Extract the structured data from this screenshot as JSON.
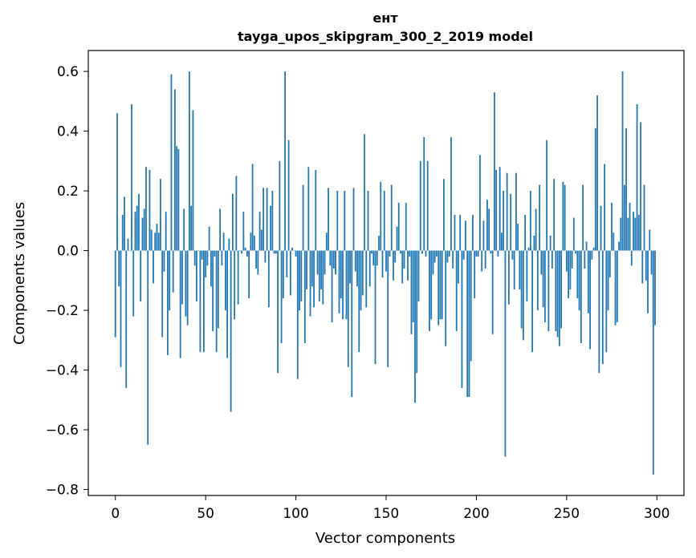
{
  "chart_data": {
    "type": "bar",
    "title_line1": "ент",
    "title_line2": "tayga_upos_skipgram_300_2_2019 model",
    "xlabel": "Vector components",
    "ylabel": "Components values",
    "xlim": [
      -15,
      315
    ],
    "ylim": [
      -0.82,
      0.67
    ],
    "xticks": [
      0,
      50,
      100,
      150,
      200,
      250,
      300
    ],
    "xtick_labels": [
      "0",
      "50",
      "100",
      "150",
      "200",
      "250",
      "300"
    ],
    "yticks": [
      -0.8,
      -0.6,
      -0.4,
      -0.2,
      0.0,
      0.2,
      0.4,
      0.6
    ],
    "ytick_labels": [
      "−0.8",
      "−0.6",
      "−0.4",
      "−0.2",
      "0.0",
      "0.2",
      "0.4",
      "0.6"
    ],
    "bar_color": "#1f77b4",
    "values": [
      -0.29,
      0.46,
      -0.12,
      -0.39,
      0.12,
      0.18,
      -0.46,
      0.04,
      0.0,
      0.49,
      -0.22,
      0.13,
      0.15,
      0.19,
      -0.17,
      0.11,
      0.14,
      0.28,
      -0.65,
      0.27,
      0.07,
      -0.11,
      0.06,
      0.09,
      0.06,
      0.24,
      -0.29,
      -0.07,
      0.13,
      -0.35,
      -0.2,
      0.59,
      -0.14,
      0.54,
      0.35,
      0.34,
      -0.36,
      -0.18,
      0.14,
      -0.22,
      -0.25,
      0.6,
      0.15,
      0.47,
      -0.05,
      -0.17,
      0.0,
      -0.34,
      -0.03,
      -0.34,
      -0.09,
      -0.05,
      0.08,
      -0.12,
      -0.27,
      -0.02,
      -0.34,
      -0.26,
      0.14,
      -0.05,
      0.06,
      -0.2,
      -0.36,
      0.04,
      -0.54,
      0.19,
      -0.23,
      0.25,
      -0.18,
      0.0,
      -0.01,
      0.13,
      0.01,
      -0.02,
      -0.16,
      0.06,
      0.29,
      0.05,
      -0.06,
      -0.08,
      0.13,
      0.07,
      0.21,
      -0.04,
      0.21,
      -0.19,
      0.15,
      0.2,
      -0.01,
      -0.01,
      -0.41,
      0.3,
      -0.31,
      -0.16,
      0.6,
      -0.09,
      0.37,
      -0.15,
      0.01,
      0.0,
      -0.02,
      -0.43,
      -0.2,
      -0.17,
      0.22,
      -0.31,
      -0.13,
      0.28,
      -0.22,
      -0.12,
      -0.19,
      0.27,
      -0.08,
      -0.17,
      -0.13,
      -0.18,
      -0.08,
      0.06,
      0.21,
      -0.05,
      -0.24,
      -0.06,
      -0.08,
      0.2,
      -0.21,
      -0.16,
      -0.23,
      0.2,
      -0.23,
      -0.39,
      -0.11,
      -0.49,
      0.21,
      -0.07,
      -0.12,
      -0.34,
      -0.2,
      -0.15,
      0.39,
      -0.19,
      0.2,
      -0.12,
      -0.01,
      -0.05,
      -0.38,
      -0.05,
      0.05,
      0.23,
      -0.09,
      0.2,
      -0.07,
      -0.39,
      -0.02,
      0.22,
      -0.1,
      -0.04,
      0.08,
      0.16,
      -0.01,
      -0.11,
      -0.06,
      0.16,
      -0.1,
      -0.02,
      -0.28,
      -0.24,
      -0.51,
      -0.41,
      -0.17,
      0.3,
      -0.01,
      0.38,
      -0.02,
      0.3,
      -0.27,
      -0.23,
      -0.08,
      -0.04,
      -0.02,
      -0.25,
      -0.23,
      -0.23,
      0.24,
      -0.32,
      -0.04,
      -0.02,
      0.38,
      -0.06,
      0.12,
      -0.27,
      -0.11,
      0.12,
      -0.46,
      -0.03,
      0.1,
      -0.49,
      -0.49,
      -0.37,
      0.12,
      -0.16,
      -0.02,
      -0.02,
      0.32,
      -0.07,
      0.1,
      -0.06,
      0.17,
      0.14,
      -0.01,
      -0.28,
      0.53,
      0.27,
      -0.02,
      0.28,
      0.06,
      0.2,
      -0.69,
      0.26,
      -0.18,
      0.19,
      -0.03,
      -0.13,
      0.26,
      0.09,
      -0.13,
      -0.26,
      -0.3,
      0.12,
      -0.17,
      0.01,
      0.2,
      -0.34,
      0.05,
      0.14,
      -0.2,
      0.22,
      -0.08,
      -0.19,
      -0.24,
      0.37,
      -0.27,
      0.05,
      -0.06,
      0.24,
      -0.27,
      -0.29,
      -0.32,
      -0.26,
      0.23,
      0.22,
      -0.07,
      -0.16,
      -0.13,
      -0.06,
      0.11,
      -0.01,
      -0.16,
      -0.2,
      -0.31,
      0.22,
      -0.06,
      0.03,
      -0.21,
      -0.33,
      -0.03,
      0.01,
      0.41,
      0.52,
      -0.41,
      0.15,
      -0.38,
      0.29,
      -0.34,
      -0.2,
      -0.09,
      0.16,
      0.06,
      -0.25,
      -0.24,
      0.03,
      0.11,
      0.6,
      0.22,
      0.41,
      0.11,
      0.16,
      -0.05,
      0.13,
      0.11,
      0.49,
      0.12,
      0.43,
      -0.11,
      0.22,
      -0.1,
      -0.21,
      0.07,
      -0.08,
      -0.75,
      -0.25
    ]
  }
}
